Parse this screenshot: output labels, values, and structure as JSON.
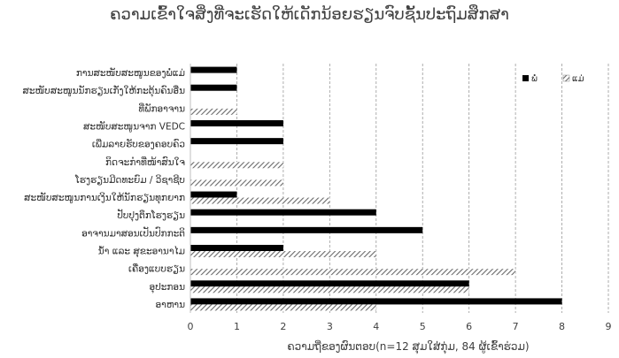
{
  "chart_data": {
    "type": "bar",
    "orientation": "horizontal",
    "title": "ຄວາມເຂົ້າໃຈສິ່ງທີ່ຈະເຮັດໃຫ້ເດັກນ້ອຍຮຽນຈົບຊັ້ນປະຖົມສຶກສາ",
    "xlabel": "ຄວາມຖີ່ຂອງຜົນຕອບ(n=12 ສຸມໃສ່ກຸ່ມ, 84 ຜູ້ເຂົ້າຮ່ວມ)",
    "ylabel": "",
    "xlim": [
      0,
      9
    ],
    "xticks": [
      "0",
      "1",
      "2",
      "3",
      "4",
      "5",
      "6",
      "7",
      "8",
      "9"
    ],
    "grid": "vertical-dashed",
    "legend_position": "top-right",
    "categories": [
      "ການສະໜັບສະໜູນຂອງພໍ່ແມ່",
      "ສະໜັບສະໜູນນັກຮຽນເກັ່ງໃຫ້ກະຕຸ້ນຄົນອື່ນ",
      "ທີ່ພັກອາຈານ",
      "ສະໜັບສະໜູນຈາກ VEDC",
      "ເພີ່ມລາຍຮັບຂອງຄອບຄົວ",
      "ກິດຈະກຳທີ່ໜ້າສົນໃຈ",
      "ໂຮງຮຽນມີດທະຍົມ / ວິຊາຊີບ",
      "ສະໜັບສະໜູນການເງິນໃຫ້ນັກຮຽນທຸກຍາກ",
      "ປັບປຸງຕຶກໂຮງຮຽນ",
      "ອາຈານມາສອນເປັນປົກກະຕິ",
      "ນ້ຳ ແລະ ສຸຂະອານາໄມ",
      "ເຄື່ອງແບບຮຽນ",
      "ອຸປະກອນ",
      "ອາຫານ"
    ],
    "series": [
      {
        "name": "ພໍ່",
        "color": "#000000",
        "pattern": "solid",
        "values": [
          1,
          1,
          0,
          2,
          2,
          0,
          0,
          1,
          4,
          5,
          2,
          0,
          6,
          8
        ]
      },
      {
        "name": "ແມ່",
        "color": "#707070",
        "pattern": "diagonal-hatch",
        "values": [
          0,
          0,
          1,
          0,
          0,
          2,
          2,
          3,
          0,
          0,
          4,
          7,
          6,
          4
        ]
      }
    ]
  }
}
